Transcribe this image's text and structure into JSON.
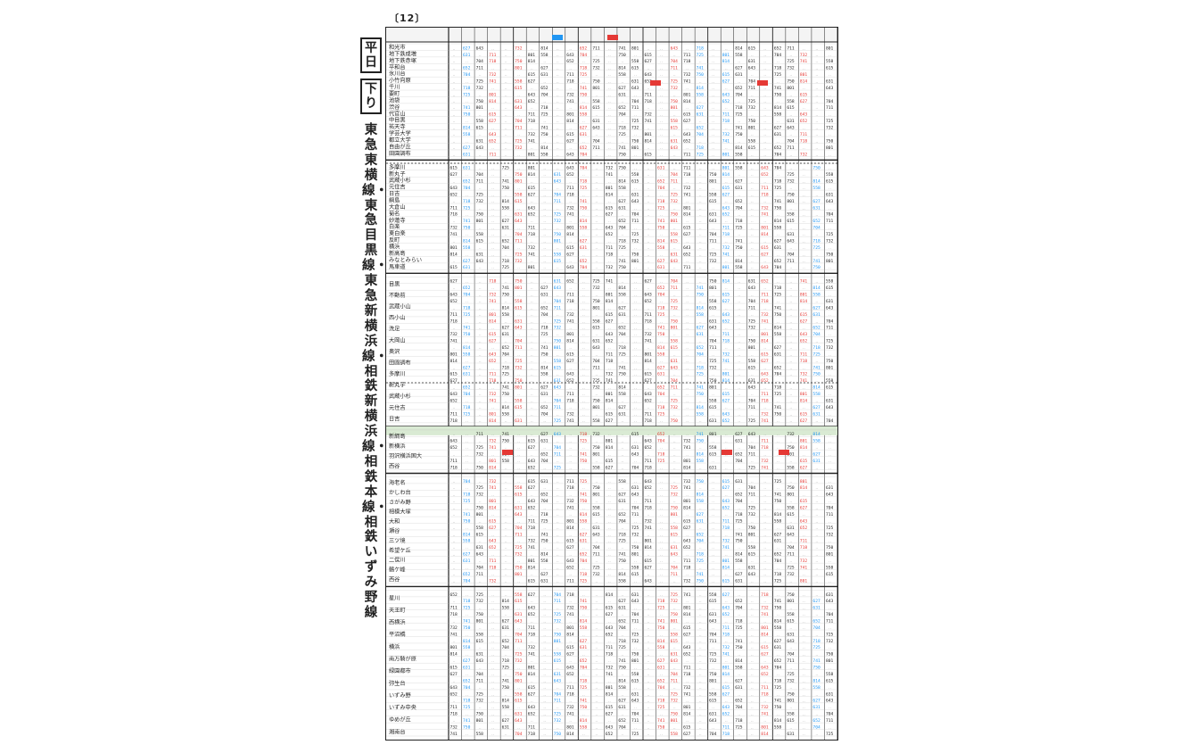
{
  "page": {
    "page_number": "〔12〕",
    "day_type": "平日",
    "direction": "下り",
    "route_title": "東急東横線・東急目黒線・東急新横浜線・相鉄新横浜線・相鉄本線・相鉄いずみ野線"
  },
  "timetable": {
    "sections": [
      {
        "rows": 17,
        "stations": [
          "和光市",
          "地下鉄成増",
          "地下鉄赤塚",
          "平和台",
          "氷川台",
          "小竹向原",
          "千川",
          "要町",
          "池袋",
          "渋谷",
          "代官山",
          "中目黒",
          "祐天寺",
          "学芸大学",
          "都立大学",
          "自由が丘",
          "田園調布"
        ]
      },
      {
        "rows": 16,
        "stations": [
          "多摩川",
          "新丸子",
          "武蔵小杉",
          "元住吉",
          "日吉",
          "綱島",
          "大倉山",
          "菊名",
          "妙蓮寺",
          "白楽",
          "東白楽",
          "反町",
          "横浜",
          "新高島",
          "みなとみらい",
          "馬車道"
        ]
      },
      {
        "rows": 22,
        "stations": [
          "目黒",
          "不動前",
          "武蔵小山",
          "西小山",
          "洗足",
          "大岡山",
          "奥沢",
          "田園調布",
          "多摩川",
          "新丸子",
          "武蔵小杉",
          "元住吉",
          "日吉"
        ]
      },
      {
        "rows": 6,
        "stations": [
          "新綱島",
          "新横浜",
          "羽沢横浜国大",
          "西谷"
        ]
      },
      {
        "rows": 16,
        "stations": [
          "海老名",
          "かしわ台",
          "さがみ野",
          "相模大塚",
          "大和",
          "瀬谷",
          "三ツ境",
          "希望ケ丘",
          "二俣川",
          "鶴ケ峰",
          "西谷"
        ]
      },
      {
        "rows": 22,
        "stations": [
          "星川",
          "天王町",
          "西横浜",
          "平沼橋",
          "横浜",
          "南万騎が原",
          "緑園都市",
          "弥生台",
          "いずみ野",
          "いずみ中央",
          "ゆめが丘",
          "湘南台"
        ]
      }
    ],
    "column_count": 30,
    "sample_times": [
      "5:58",
      "6:15",
      "6:27",
      "6:31",
      "6:43",
      "6:52",
      "7:04",
      "7:11",
      "7:18",
      "7:25",
      "7:32",
      "7:41",
      "7:50",
      "8:01",
      "8:14"
    ]
  },
  "colors": {
    "ink": "#222222",
    "red": "#e53935",
    "blue": "#2196f3",
    "green_band": "#d9ead3"
  }
}
